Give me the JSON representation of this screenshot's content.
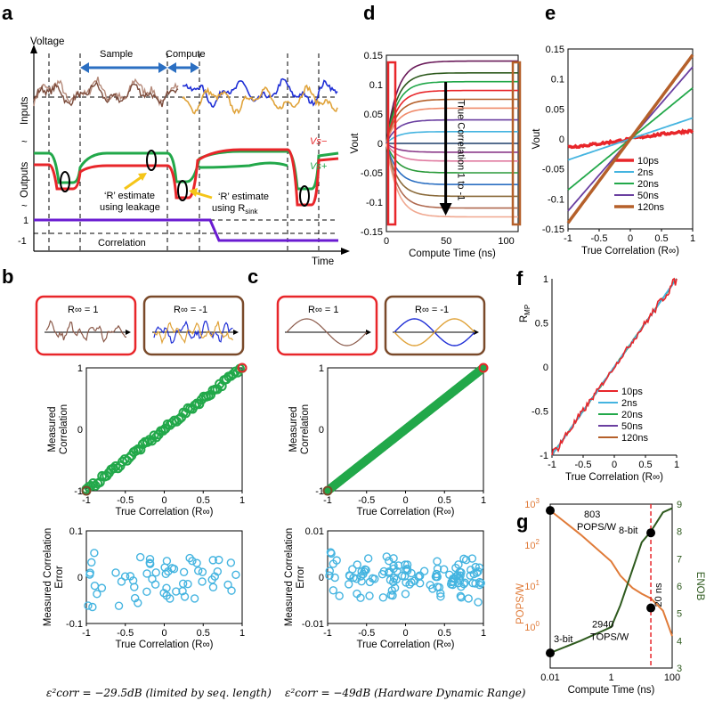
{
  "panel_labels": {
    "a": "a",
    "b": "b",
    "c": "c",
    "d": "d",
    "e": "e",
    "f": "f",
    "g": "g"
  },
  "panel_a": {
    "ylabel": "Voltage",
    "xlabel": "Time",
    "sample_label": "Sample",
    "compute_label": "Compute",
    "inputs_label": "Inputs",
    "outputs_label": "Outputs",
    "vs_minus": "Vs−",
    "vs_plus": "Vs+",
    "r_leak_line1": "‘R’ estimate",
    "r_leak_line2": "using leakage",
    "r_sink_line1": "‘R’ estimate",
    "r_sink_line2": "using R",
    "r_sink_sub": "sink",
    "corr_label": "Correlation",
    "tick_pos": "1",
    "tick_neg": "-1",
    "colors": {
      "vs_minus": "#e8262a",
      "vs_plus": "#22a84a",
      "corr": "#6a1bd1",
      "input_a": "#8b5a4a",
      "input_b": "#e0a33a",
      "input_c": "#1f2fd6",
      "arrow": "#2b6fc2",
      "yellow": "#f5c518"
    }
  },
  "inset_b": {
    "left": "R∞ = 1",
    "right": "R∞ = -1"
  },
  "inset_c": {
    "left": "R∞ = 1",
    "right": "R∞ = -1"
  },
  "footer_b": "ε²corr = −29.5dB (limited by seq. length)",
  "footer_c": "ε²corr = −49dB (Hardware Dynamic Range)",
  "chart_data": [
    {
      "id": "b_top",
      "type": "scatter",
      "xlabel": "True Correlation (R∞)",
      "ylabel_lines": [
        "Measured",
        "Correlation"
      ],
      "xlim": [
        -1,
        1
      ],
      "ylim": [
        -1,
        1
      ],
      "xticks": [
        "-1",
        "-0.5",
        "0",
        "0.5",
        "1"
      ],
      "yticks": [
        "-1",
        "0",
        "1"
      ],
      "series": [
        {
          "color": "#22a84a"
        }
      ]
    },
    {
      "id": "b_bot",
      "type": "scatter",
      "xlabel": "True Correlation (R∞)",
      "ylabel_lines": [
        "Measured Correlation",
        "Error"
      ],
      "xlim": [
        -1,
        1
      ],
      "ylim": [
        -0.1,
        0.1
      ],
      "xticks": [
        "-1",
        "-0.5",
        "0",
        "0.5",
        "1"
      ],
      "yticks": [
        "-0.1",
        "0",
        "0.1"
      ],
      "series": [
        {
          "color": "#44b4e0"
        }
      ]
    },
    {
      "id": "c_top",
      "type": "scatter",
      "xlabel": "True Correlation (R∞)",
      "ylabel_lines": [
        "Measured",
        "Correlation"
      ],
      "xlim": [
        -1,
        1
      ],
      "ylim": [
        -1,
        1
      ],
      "xticks": [
        "-1",
        "-0.5",
        "0",
        "0.5",
        "1"
      ],
      "yticks": [
        "-1",
        "0",
        "1"
      ],
      "series": [
        {
          "color": "#22a84a"
        }
      ]
    },
    {
      "id": "c_bot",
      "type": "scatter",
      "xlabel": "True Correlation (R∞)",
      "ylabel_lines": [
        "Measured Correlation",
        "Error"
      ],
      "xlim": [
        -1,
        1
      ],
      "ylim": [
        -0.01,
        0.01
      ],
      "xticks": [
        "-1",
        "-0.5",
        "0",
        "0.5",
        "1"
      ],
      "yticks": [
        "-0.01",
        "0",
        "0.01"
      ],
      "series": [
        {
          "color": "#44b4e0"
        }
      ]
    },
    {
      "id": "d",
      "type": "line",
      "xlabel": "Compute Time (ns)",
      "ylabel": "Vout",
      "xlim": [
        0,
        110
      ],
      "ylim": [
        -0.15,
        0.15
      ],
      "xticks": [
        "0",
        "50",
        "100"
      ],
      "yticks": [
        "0.15",
        "0.1",
        "0.05",
        "0",
        "-0.05",
        "-0.1",
        "-0.15"
      ],
      "annotation": "True Correlation 1 to -1"
    },
    {
      "id": "e",
      "type": "line",
      "xlabel": "True Correlation (R∞)",
      "ylabel": "Vout",
      "xlim": [
        -1,
        1
      ],
      "ylim": [
        -0.15,
        0.15
      ],
      "xticks": [
        "-1",
        "-0.5",
        "0",
        "0.5",
        "1"
      ],
      "yticks": [
        "0.15",
        "0.1",
        "0.05",
        "0",
        "-0.05",
        "-0.1",
        "-0.15"
      ],
      "series": [
        {
          "name": "10ps",
          "color": "#e8262a",
          "slope": 0.018
        },
        {
          "name": "2ns",
          "color": "#44b4e0",
          "slope": 0.035
        },
        {
          "name": "20ns",
          "color": "#22a84a",
          "slope": 0.085
        },
        {
          "name": "50ns",
          "color": "#6a3fa0",
          "slope": 0.12
        },
        {
          "name": "120ns",
          "color": "#b5602a",
          "slope": 0.14
        }
      ]
    },
    {
      "id": "f",
      "type": "line",
      "xlabel": "True Correlation (R∞)",
      "ylabel": "RMP",
      "ylabel_sub": "MP",
      "xlim": [
        -1,
        1
      ],
      "ylim": [
        -1,
        1
      ],
      "xticks": [
        "-1",
        "-0.5",
        "0",
        "0.5",
        "1"
      ],
      "yticks": [
        "1",
        "0.5",
        "0",
        "-0.5",
        "-1"
      ],
      "series": [
        {
          "name": "10ps",
          "color": "#e8262a"
        },
        {
          "name": "2ns",
          "color": "#44b4e0"
        },
        {
          "name": "20ns",
          "color": "#22a84a"
        },
        {
          "name": "50ns",
          "color": "#6a3fa0"
        },
        {
          "name": "120ns",
          "color": "#b5602a"
        }
      ]
    },
    {
      "id": "g",
      "type": "line",
      "xlabel": "Compute Time (ns)",
      "ylabel_left": "POPS/W",
      "ylabel_right": "ENOB",
      "xscale": "log",
      "xlim": [
        0.01,
        100
      ],
      "ylim_left": [
        0.1,
        1000
      ],
      "ylim_right": [
        3,
        9
      ],
      "xticks": [
        "0.01",
        "1",
        "100"
      ],
      "yticks_left": [
        "10",
        "10",
        "10",
        "10"
      ],
      "yticks_left_exp": [
        "3",
        "2",
        "1",
        "0"
      ],
      "yticks_right": [
        "9",
        "8",
        "7",
        "6",
        "5",
        "4",
        "3"
      ],
      "series": [
        {
          "name": "POPS/W",
          "color": "#e07b39",
          "x": [
            0.01,
            0.1,
            1,
            2,
            5,
            10,
            20,
            50,
            100
          ],
          "y": [
            700,
            180,
            40,
            18,
            9,
            6.5,
            5,
            2.5,
            0.6
          ]
        },
        {
          "name": "ENOB",
          "color": "#2e5a1e",
          "x": [
            0.01,
            0.1,
            1,
            2,
            5,
            10,
            20,
            50,
            100
          ],
          "y": [
            3.55,
            4.0,
            4.5,
            5.3,
            6.6,
            7.6,
            8.0,
            8.7,
            8.85
          ]
        }
      ],
      "markers": [
        {
          "label1": "803",
          "label2": "POPS/W"
        },
        {
          "label1": "8-bit"
        },
        {
          "label1": "2940",
          "label2": "TOPS/W"
        },
        {
          "label1": "3-bit"
        }
      ],
      "vline_label": "20 ns"
    }
  ]
}
